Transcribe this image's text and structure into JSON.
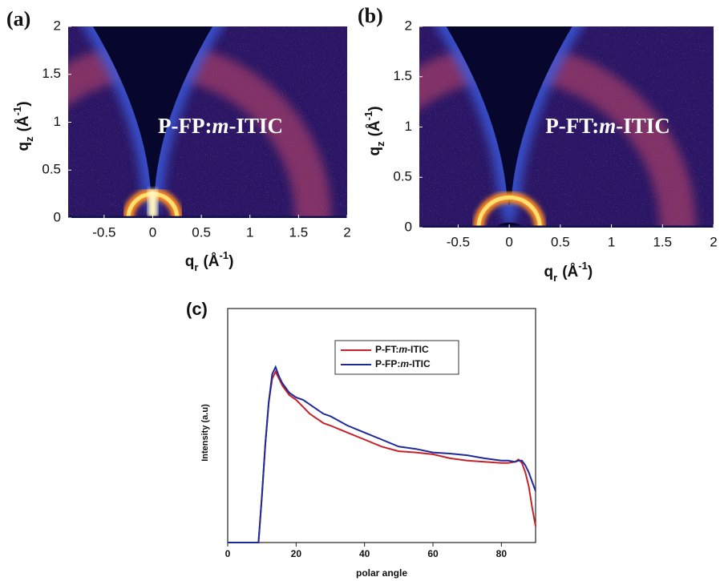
{
  "chart_data": [
    {
      "type": "heatmap",
      "panel_label": "(a)",
      "annotation": "P-FP:m-ITIC",
      "xlabel": [
        "q",
        "r",
        "(Å",
        "-1",
        ")"
      ],
      "ylabel": [
        "q",
        "z",
        "(Å",
        "-1",
        ")"
      ],
      "xlim": [
        -0.87,
        2
      ],
      "ylim": [
        0,
        2
      ],
      "xticks": [
        -0.5,
        0,
        0.5,
        1,
        1.5,
        2
      ],
      "yticks": [
        0,
        0.5,
        1,
        1.5,
        2
      ]
    },
    {
      "type": "heatmap",
      "panel_label": "(b)",
      "annotation": "P-FT:m-ITIC",
      "xlabel": [
        "q",
        "r",
        "(Å",
        "-1",
        ")"
      ],
      "ylabel": [
        "q",
        "z",
        "(Å",
        "-1",
        ")"
      ],
      "xlim": [
        -0.88,
        2
      ],
      "ylim": [
        0,
        2
      ],
      "xticks": [
        -0.5,
        0,
        0.5,
        1,
        1.5,
        2
      ],
      "yticks": [
        0,
        0.5,
        1,
        1.5,
        2
      ]
    },
    {
      "type": "line",
      "panel_label": "(c)",
      "xlabel": "polar angle",
      "ylabel": "Intensity (a.u)",
      "xlim": [
        0,
        90
      ],
      "ylim": [
        0,
        1
      ],
      "xticks": [
        0,
        20,
        40,
        60,
        80
      ],
      "x": [
        0,
        2,
        4,
        6,
        8,
        9,
        10,
        11,
        12,
        13,
        14,
        15,
        16,
        18,
        20,
        22,
        24,
        26,
        28,
        30,
        35,
        40,
        45,
        50,
        55,
        60,
        65,
        70,
        75,
        80,
        82,
        84,
        85,
        86,
        87,
        88,
        89,
        90
      ],
      "series": [
        {
          "name": "P-FT:m-ITIC",
          "color": "#c8202a",
          "values": [
            0,
            0,
            0,
            0,
            0,
            0,
            0.2,
            0.42,
            0.6,
            0.7,
            0.73,
            0.7,
            0.67,
            0.63,
            0.61,
            0.58,
            0.55,
            0.53,
            0.51,
            0.5,
            0.47,
            0.44,
            0.41,
            0.39,
            0.385,
            0.377,
            0.36,
            0.35,
            0.345,
            0.34,
            0.34,
            0.345,
            0.355,
            0.34,
            0.3,
            0.24,
            0.15,
            0.07
          ]
        },
        {
          "name": "P-FP:m-ITIC",
          "color": "#1e2a9a",
          "values": [
            0,
            0,
            0,
            0,
            0,
            0,
            0.2,
            0.42,
            0.6,
            0.72,
            0.75,
            0.71,
            0.68,
            0.64,
            0.62,
            0.61,
            0.59,
            0.57,
            0.55,
            0.54,
            0.5,
            0.47,
            0.44,
            0.41,
            0.4,
            0.385,
            0.38,
            0.373,
            0.36,
            0.35,
            0.35,
            0.345,
            0.35,
            0.35,
            0.33,
            0.3,
            0.26,
            0.22
          ]
        }
      ]
    }
  ]
}
